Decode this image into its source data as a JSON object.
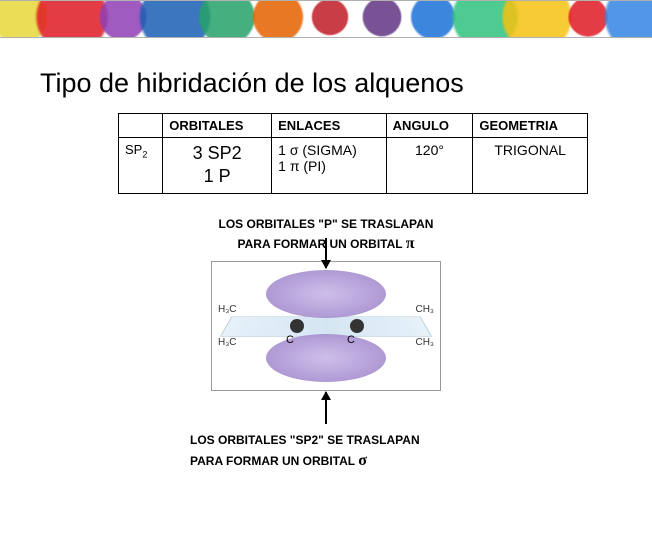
{
  "splash_colors": [
    "#e8d93a",
    "#e01b24",
    "#8f3fb5",
    "#1a5fb4",
    "#26a269",
    "#e66100",
    "#c01c28",
    "#613583",
    "#1c71d8",
    "#2ec27e",
    "#f5c211",
    "#e01b24",
    "#3584e4"
  ],
  "title": "Tipo de hibridación de los alquenos",
  "table": {
    "headers": [
      "",
      "ORBITALES",
      "ENLACES",
      "ANGULO",
      "GEOMETRIA"
    ],
    "row": {
      "label_html": "SP<sub>2</sub>",
      "orbitales_l1": "3 SP2",
      "orbitales_l2": "1 P",
      "enlaces_l1": "1 σ (SIGMA)",
      "enlaces_l2": "1 π (PI)",
      "angulo": "120°",
      "geometria": "TRIGONAL"
    }
  },
  "caption_top_l1": "LOS ORBITALES \"P\" SE TRASLAPAN",
  "caption_top_l2_pre": "PARA FORMAR UN ORBITAL ",
  "caption_top_l2_sym": "π",
  "diagram": {
    "c_label": "C",
    "ch3_tl": "H₃C",
    "ch3_tr": "CH₃",
    "ch3_bl": "H₃C",
    "ch3_br": "CH₃"
  },
  "caption_bot_l1": "LOS ORBITALES \"SP2\" SE TRASLAPAN",
  "caption_bot_l2_pre": "PARA FORMAR UN ORBITAL ",
  "caption_bot_l2_sym": "σ"
}
